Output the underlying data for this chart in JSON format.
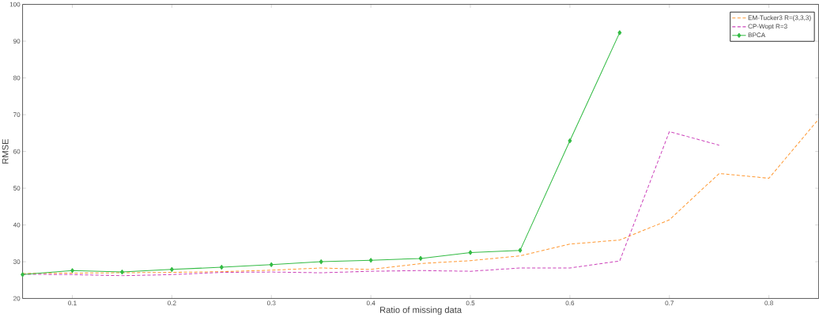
{
  "chart_data": {
    "type": "line",
    "xlabel": "Ratio of missing data",
    "ylabel": "RMSE",
    "x": [
      0.05,
      0.1,
      0.15,
      0.2,
      0.25,
      0.3,
      0.35,
      0.4,
      0.45,
      0.5,
      0.55,
      0.6,
      0.65,
      0.7,
      0.75,
      0.8,
      0.85
    ],
    "series": [
      {
        "name": "EM-Tucker3 R=(3,3,3)",
        "color": "#ff9933",
        "line_style": "dashed",
        "marker": "none",
        "values": [
          26.8,
          26.9,
          27.0,
          27.1,
          27.3,
          27.7,
          28.3,
          27.9,
          29.5,
          30.3,
          31.6,
          34.8,
          35.9,
          41.4,
          54.0,
          52.7,
          68.8
        ]
      },
      {
        "name": "CP-Wopt R=3",
        "color": "#cc44bb",
        "line_style": "dashed",
        "marker": "none",
        "values": [
          26.6,
          26.5,
          26.2,
          26.5,
          27.1,
          27.2,
          27.0,
          27.4,
          27.6,
          27.4,
          28.3,
          28.3,
          30.2,
          65.4,
          61.7,
          null,
          null
        ]
      },
      {
        "name": "BPCA",
        "color": "#33bb44",
        "line_style": "solid",
        "marker": "diamond",
        "values": [
          26.5,
          27.6,
          27.2,
          27.9,
          28.5,
          29.2,
          30.0,
          30.4,
          30.9,
          32.5,
          33.1,
          62.9,
          92.3,
          null,
          null,
          null,
          null
        ]
      }
    ],
    "xlim": [
      0.05,
      0.85
    ],
    "ylim": [
      20,
      100
    ],
    "xticks": [
      0.1,
      0.2,
      0.3,
      0.4,
      0.5,
      0.6,
      0.7,
      0.8
    ],
    "yticks": [
      20,
      30,
      40,
      50,
      60,
      70,
      80,
      90,
      100
    ],
    "legend": "top right",
    "grid": false
  }
}
